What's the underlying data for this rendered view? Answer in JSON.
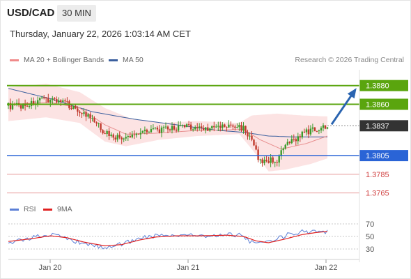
{
  "header": {
    "symbol": "USD/CAD",
    "timeframe": "30 MIN",
    "datetime": "Thursday, January 22, 2026 1:03:14 AM CET"
  },
  "legend": {
    "ma20_label": "MA 20 + Bollinger Bands",
    "ma50_label": "MA 50",
    "credit": "Research © 2026 Trading Central"
  },
  "rsi_legend": {
    "rsi_label": "RSI",
    "ma_label": "9MA"
  },
  "colors": {
    "bull": "#3a9b2a",
    "bear": "#c0392b",
    "resistance": "#5aa50e",
    "support": "#2a64d6",
    "minor_level": "#e79a9a",
    "bollinger_fill": "#fbdada",
    "ma20": "#e89090",
    "ma50": "#3b5f9e",
    "arrow": "#2a64b0",
    "rsi": "#5b7fd6",
    "rsi_ma": "#e02020",
    "current": "#333333"
  },
  "chart_data": [
    {
      "type": "candlestick",
      "title": "USD/CAD 30 MIN",
      "x_tick_labels": [
        "Jan 20",
        "Jan 21",
        "Jan 22"
      ],
      "ylim": [
        1.3755,
        1.3897
      ],
      "current_price": 1.3837,
      "levels": [
        {
          "value": 1.388,
          "label": "1.3880",
          "kind": "resistance"
        },
        {
          "value": 1.386,
          "label": "1.3860",
          "kind": "resistance"
        },
        {
          "value": 1.3805,
          "label": "1.3805",
          "kind": "support"
        },
        {
          "value": 1.3785,
          "label": "1.3785",
          "kind": "minor"
        },
        {
          "value": 1.3765,
          "label": "1.3765",
          "kind": "minor"
        }
      ],
      "current_label": "1.3837",
      "arrow": {
        "from": 1.3837,
        "to": 1.388,
        "direction": "up"
      },
      "close_keypoints": [
        [
          0,
          1.3858
        ],
        [
          5,
          1.3858
        ],
        [
          10,
          1.386
        ],
        [
          16,
          1.3864
        ],
        [
          20,
          1.3866
        ],
        [
          24,
          1.3864
        ],
        [
          28,
          1.386
        ],
        [
          34,
          1.3853
        ],
        [
          40,
          1.3843
        ],
        [
          46,
          1.383
        ],
        [
          51,
          1.3825
        ],
        [
          56,
          1.3823
        ],
        [
          62,
          1.383
        ],
        [
          66,
          1.3833
        ],
        [
          72,
          1.3832
        ],
        [
          78,
          1.3834
        ],
        [
          84,
          1.3836
        ],
        [
          90,
          1.3835
        ],
        [
          96,
          1.3834
        ],
        [
          102,
          1.3836
        ],
        [
          108,
          1.3836
        ],
        [
          112,
          1.3835
        ],
        [
          116,
          1.382
        ],
        [
          120,
          1.3798
        ],
        [
          124,
          1.38
        ],
        [
          128,
          1.38
        ],
        [
          132,
          1.3815
        ],
        [
          136,
          1.3822
        ],
        [
          140,
          1.3828
        ],
        [
          144,
          1.3832
        ],
        [
          148,
          1.3834
        ],
        [
          152,
          1.3837
        ]
      ],
      "ma20_keypoints": [
        [
          0,
          1.386
        ],
        [
          20,
          1.3862
        ],
        [
          34,
          1.3856
        ],
        [
          46,
          1.3838
        ],
        [
          56,
          1.3828
        ],
        [
          70,
          1.3829
        ],
        [
          90,
          1.3832
        ],
        [
          112,
          1.3833
        ],
        [
          120,
          1.3822
        ],
        [
          130,
          1.3812
        ],
        [
          142,
          1.3818
        ],
        [
          152,
          1.3826
        ]
      ],
      "bollinger_upper_keypoints": [
        [
          0,
          1.3878
        ],
        [
          18,
          1.3882
        ],
        [
          34,
          1.3873
        ],
        [
          46,
          1.3856
        ],
        [
          58,
          1.3845
        ],
        [
          72,
          1.384
        ],
        [
          90,
          1.3842
        ],
        [
          110,
          1.384
        ],
        [
          116,
          1.3848
        ],
        [
          128,
          1.385
        ],
        [
          140,
          1.3848
        ],
        [
          152,
          1.3847
        ]
      ],
      "bollinger_lower_keypoints": [
        [
          0,
          1.3842
        ],
        [
          18,
          1.3846
        ],
        [
          34,
          1.384
        ],
        [
          46,
          1.382
        ],
        [
          56,
          1.3815
        ],
        [
          72,
          1.3822
        ],
        [
          90,
          1.3826
        ],
        [
          110,
          1.3828
        ],
        [
          116,
          1.3812
        ],
        [
          124,
          1.3788
        ],
        [
          132,
          1.379
        ],
        [
          144,
          1.3796
        ],
        [
          152,
          1.3802
        ]
      ],
      "ma50_keypoints": [
        [
          0,
          1.3877
        ],
        [
          20,
          1.3866
        ],
        [
          40,
          1.3852
        ],
        [
          60,
          1.3844
        ],
        [
          80,
          1.3838
        ],
        [
          100,
          1.3832
        ],
        [
          112,
          1.383
        ],
        [
          124,
          1.3826
        ],
        [
          136,
          1.3825
        ],
        [
          152,
          1.3825
        ]
      ],
      "candle_count": 153,
      "session_ticks": [
        19,
        82,
        147
      ]
    },
    {
      "type": "line",
      "title": "RSI",
      "ylim": [
        20,
        80
      ],
      "y_tick_labels": [
        "70",
        "50",
        "30"
      ],
      "y_ticks": [
        70,
        50,
        30
      ],
      "series": [
        {
          "name": "RSI",
          "keypoints": [
            [
              0,
              41
            ],
            [
              6,
              44
            ],
            [
              12,
              49
            ],
            [
              20,
              53
            ],
            [
              26,
              48
            ],
            [
              32,
              42
            ],
            [
              38,
              36
            ],
            [
              46,
              32
            ],
            [
              52,
              36
            ],
            [
              58,
              42
            ],
            [
              64,
              49
            ],
            [
              70,
              51
            ],
            [
              78,
              52
            ],
            [
              86,
              53
            ],
            [
              94,
              50
            ],
            [
              102,
              53
            ],
            [
              110,
              52
            ],
            [
              114,
              44
            ],
            [
              118,
              38
            ],
            [
              122,
              41
            ],
            [
              128,
              46
            ],
            [
              134,
              54
            ],
            [
              140,
              58
            ],
            [
              146,
              57
            ],
            [
              152,
              58
            ]
          ]
        },
        {
          "name": "9MA",
          "keypoints": [
            [
              0,
              42
            ],
            [
              10,
              46
            ],
            [
              20,
              51
            ],
            [
              28,
              48
            ],
            [
              36,
              41
            ],
            [
              46,
              35
            ],
            [
              54,
              37
            ],
            [
              62,
              44
            ],
            [
              70,
              49
            ],
            [
              80,
              51
            ],
            [
              92,
              51
            ],
            [
              104,
              52
            ],
            [
              112,
              50
            ],
            [
              118,
              43
            ],
            [
              124,
              40
            ],
            [
              132,
              46
            ],
            [
              140,
              53
            ],
            [
              146,
              56
            ],
            [
              152,
              58
            ]
          ]
        }
      ]
    }
  ]
}
